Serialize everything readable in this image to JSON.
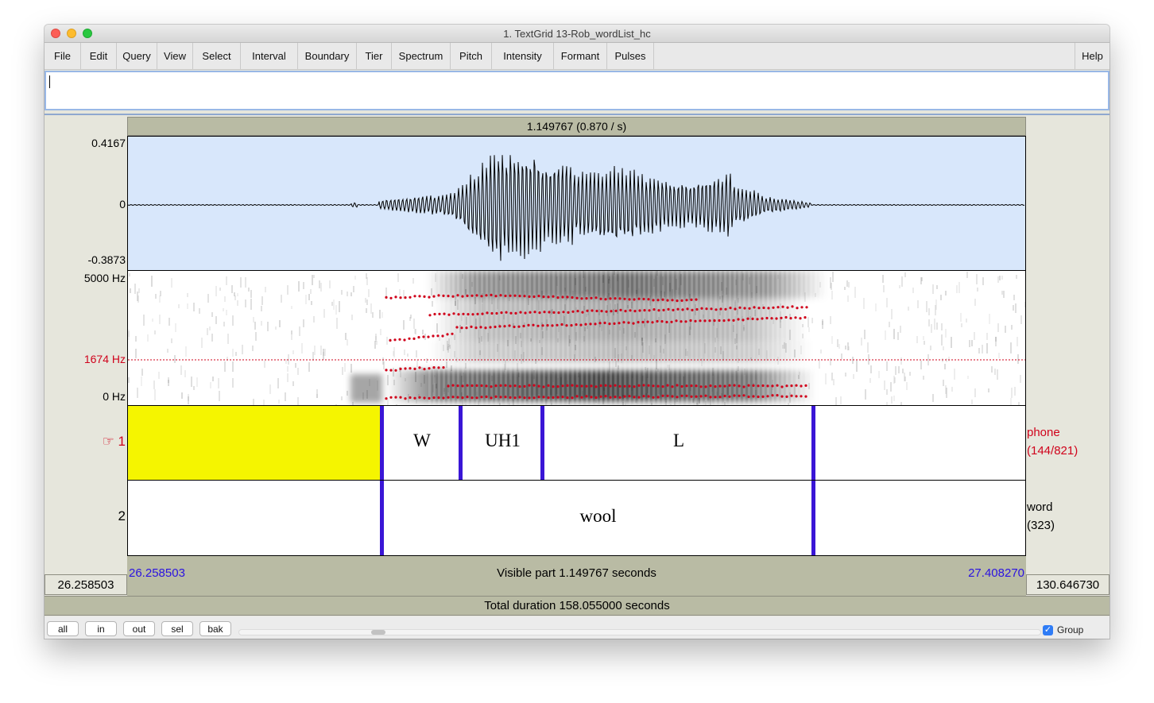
{
  "window": {
    "title": "1. TextGrid 13-Rob_wordList_hc"
  },
  "menu": {
    "items": [
      "File",
      "Edit",
      "Query",
      "View",
      "Select",
      "Interval",
      "Boundary",
      "Tier",
      "Spectrum",
      "Pitch",
      "Intensity",
      "Formant",
      "Pulses"
    ],
    "help": "Help"
  },
  "header": {
    "selection_label": "1.149767 (0.870 / s)"
  },
  "waveform": {
    "ymax": "0.4167",
    "yzero": "0",
    "ymin": "-0.3873"
  },
  "spectrogram": {
    "fmax": "5000 Hz",
    "cursor": "1674 Hz",
    "fmin": "0 Hz"
  },
  "tiers": [
    {
      "marker": "☞ 1",
      "name": "phone",
      "count": "(144/821)",
      "segments": [
        {
          "label": ""
        },
        {
          "label": "W"
        },
        {
          "label": "UH1"
        },
        {
          "label": "L"
        },
        {
          "label": ""
        }
      ]
    },
    {
      "marker": "2",
      "name": "word",
      "count": "(323)",
      "segments": [
        {
          "label": ""
        },
        {
          "label": "wool"
        },
        {
          "label": ""
        }
      ]
    }
  ],
  "timeline": {
    "left_outer": "26.258503",
    "left_visible": "26.258503",
    "visible_part": "Visible part 1.149767 seconds",
    "right_visible": "27.408270",
    "right_outer": "130.646730",
    "total_duration": "Total duration 158.055000 seconds"
  },
  "buttons": {
    "all": "all",
    "in": "in",
    "out": "out",
    "sel": "sel",
    "bak": "bak"
  },
  "group": {
    "label": "Group",
    "checked": true
  },
  "colors": {
    "selection": "#f5f500",
    "boundary": "#3a16d6",
    "formant": "#d0021b",
    "waveform_bg": "#d8e7fb"
  }
}
